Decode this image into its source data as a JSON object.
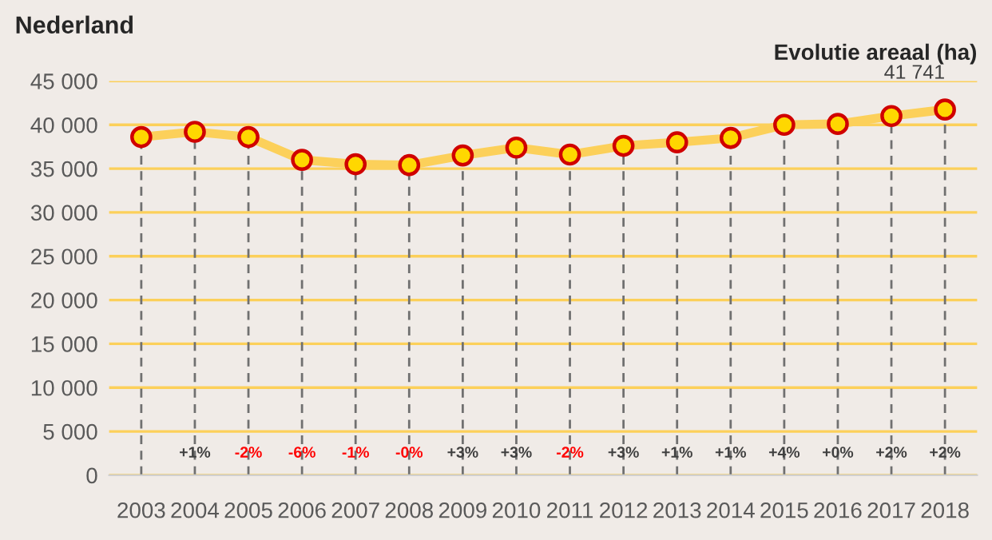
{
  "chart_data": {
    "type": "line",
    "title": "Nederland",
    "subtitle": "Evolutie areaal (ha)",
    "categories": [
      "2003",
      "2004",
      "2005",
      "2006",
      "2007",
      "2008",
      "2009",
      "2010",
      "2011",
      "2012",
      "2013",
      "2014",
      "2015",
      "2016",
      "2017",
      "2018"
    ],
    "series": [
      {
        "color": "#fcd05a",
        "values": [
          38600,
          39200,
          38600,
          36000,
          35500,
          35400,
          36500,
          37400,
          36600,
          37600,
          38000,
          38500,
          40000,
          40100,
          41000,
          41741
        ],
        "value_labels": [
          null,
          null,
          null,
          null,
          null,
          null,
          null,
          null,
          null,
          null,
          null,
          null,
          null,
          null,
          null,
          "41 741"
        ]
      }
    ],
    "ylim": [
      0,
      45000
    ],
    "yticks": [
      {
        "value": 0,
        "label": "0"
      },
      {
        "value": 5000,
        "label": "5 000"
      },
      {
        "value": 10000,
        "label": "10 000"
      },
      {
        "value": 15000,
        "label": "15 000"
      },
      {
        "value": 20000,
        "label": "20 000"
      },
      {
        "value": 25000,
        "label": "25 000"
      },
      {
        "value": 30000,
        "label": "30 000"
      },
      {
        "value": 35000,
        "label": "35 000"
      },
      {
        "value": 40000,
        "label": "40 000"
      },
      {
        "value": 45000,
        "label": "45 000"
      }
    ],
    "grid": true,
    "marker": "circle",
    "line_style": "solid",
    "legend": false,
    "annotations": [
      "+1%",
      "-2%",
      "-6%",
      "-1%",
      "-0%",
      "+3%",
      "+3%",
      "-2%",
      "+3%",
      "+1%",
      "+1%",
      "+4%",
      "+0%",
      "+2%",
      "+2%"
    ]
  }
}
